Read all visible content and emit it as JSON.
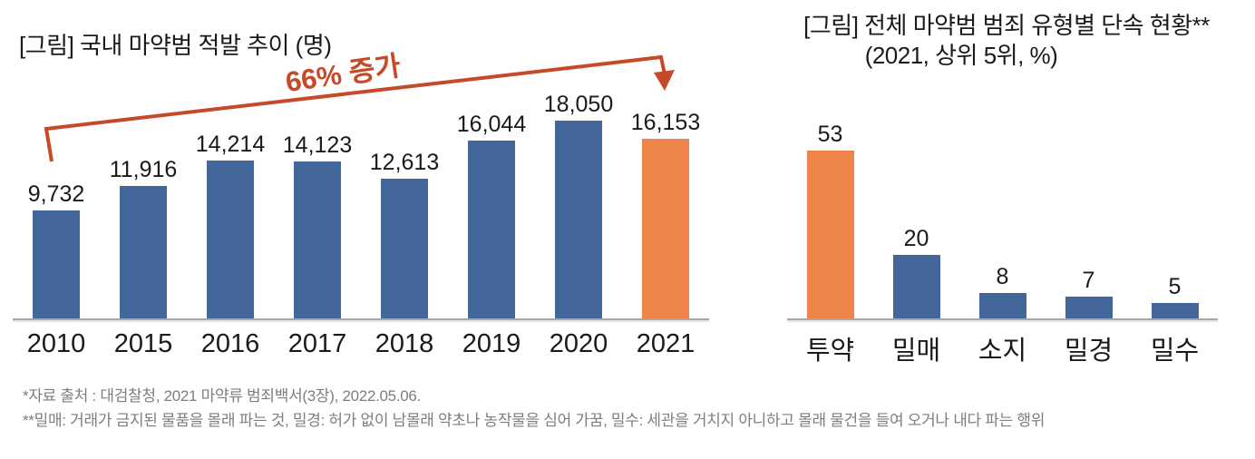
{
  "colors": {
    "bar_blue": "#44679B",
    "bar_orange": "#EE8449",
    "arrow": "#C54A28",
    "axis_line": "#A6A6A6",
    "footnote_text": "#7E7E7E",
    "text": "#1A1A1A",
    "background": "#FFFFFF"
  },
  "left_chart": {
    "title": "[그림] 국내 마약범 적발 추이 (명)",
    "annotation": "66% 증가"
  },
  "right_chart": {
    "title_line1": "[그림] 전체 마약범 범죄 유형별 단속 현황**",
    "title_line2": "(2021, 상위 5위, %)"
  },
  "footnotes": {
    "line1": "*자료 출처 : 대검찰청, 2021 마약류 범죄백서(3장), 2022.05.06.",
    "line2": "**밀매: 거래가 금지된 물품을 몰래 파는 것,  밀경: 허가 없이 남몰래 약초나 농작물을 심어 가꿈, 밀수: 세관을 거치지 아니하고 몰래 물건을 들여 오거나 내다 파는 행위"
  },
  "chart_data": [
    {
      "type": "bar",
      "title": "[그림] 국내 마약범 적발 추이 (명)",
      "categories": [
        "2010",
        "2015",
        "2016",
        "2017",
        "2018",
        "2019",
        "2020",
        "2021"
      ],
      "values": [
        9732,
        11916,
        14214,
        14123,
        12613,
        16044,
        18050,
        16153
      ],
      "data_labels": [
        "9,732",
        "11,916",
        "14,214",
        "14,123",
        "12,613",
        "16,044",
        "18,050",
        "16,153"
      ],
      "bar_colors": [
        "blue",
        "blue",
        "blue",
        "blue",
        "blue",
        "blue",
        "blue",
        "orange"
      ],
      "annotation": "66% 증가",
      "xlabel": "",
      "ylabel": "명",
      "ylim": [
        0,
        18050
      ],
      "grid": false,
      "legend": false
    },
    {
      "type": "bar",
      "title": "[그림] 전체 마약범 범죄 유형별 단속 현황** (2021, 상위 5위, %)",
      "categories": [
        "투약",
        "밀매",
        "소지",
        "밀경",
        "밀수"
      ],
      "values": [
        53,
        20,
        8,
        7,
        5
      ],
      "data_labels": [
        "53",
        "20",
        "8",
        "7",
        "5"
      ],
      "bar_colors": [
        "orange",
        "blue",
        "blue",
        "blue",
        "blue"
      ],
      "xlabel": "",
      "ylabel": "%",
      "ylim": [
        0,
        53
      ],
      "grid": false,
      "legend": false
    }
  ]
}
